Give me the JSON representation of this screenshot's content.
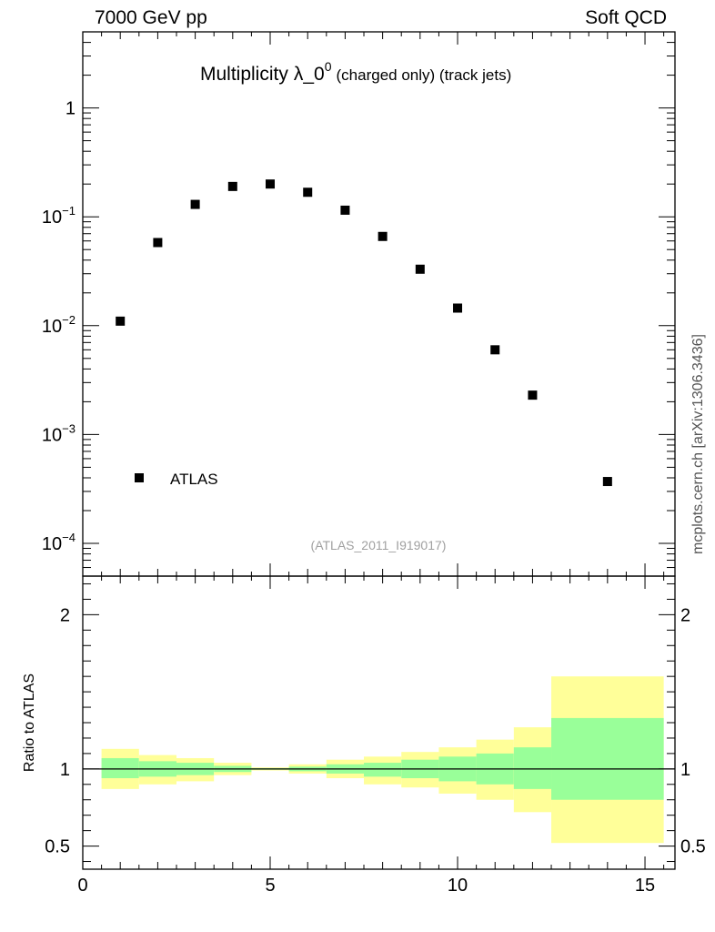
{
  "header": {
    "left": "7000 GeV pp",
    "right": "Soft QCD",
    "side": "mcplots.cern.ch [arXiv:1306.3436]"
  },
  "main": {
    "title": "Multiplicity",
    "title_symbol": "λ",
    "title_sub": "_0",
    "title_sup": "0",
    "title_suffix": "(charged only) (track jets)",
    "watermark": "(ATLAS_2011_I919017)",
    "legend_label": "ATLAS",
    "ratio_ylabel": "Ratio to ATLAS"
  },
  "colors": {
    "yellow_band": "#ffff99",
    "green_band": "#99ff99",
    "marker": "#000000"
  },
  "chart_data": [
    {
      "type": "scatter",
      "title": "Multiplicity λ_0^0 (charged only) (track jets)",
      "yscale": "log",
      "xlim": [
        0,
        15.8
      ],
      "ylim": [
        5e-05,
        5
      ],
      "y_ticks": [
        {
          "value": 0.0001,
          "base": "10",
          "exp": "−4"
        },
        {
          "value": 0.001,
          "base": "10",
          "exp": "−3"
        },
        {
          "value": 0.01,
          "base": "10",
          "exp": "−2"
        },
        {
          "value": 0.1,
          "base": "10",
          "exp": "−1"
        },
        {
          "value": 1,
          "base": "1",
          "exp": ""
        }
      ],
      "legend": "ATLAS",
      "legend_position": "lower-left",
      "x": [
        1,
        2,
        3,
        4,
        5,
        6,
        7,
        8,
        9,
        10,
        11,
        12,
        14
      ],
      "y": [
        0.011,
        0.058,
        0.13,
        0.19,
        0.2,
        0.168,
        0.115,
        0.066,
        0.033,
        0.0145,
        0.006,
        0.0023,
        0.00037
      ]
    },
    {
      "type": "area",
      "ylabel": "Ratio to ATLAS",
      "xlim": [
        0,
        15.8
      ],
      "ylim": [
        0.35,
        2.25
      ],
      "x_ticks": [
        0,
        5,
        10,
        15
      ],
      "y_ticks": [
        0.5,
        1,
        2
      ],
      "reference_line": 1,
      "bins": [
        {
          "lo": 0.5,
          "hi": 1.5,
          "yel": [
            0.87,
            1.13
          ],
          "grn": [
            0.94,
            1.07
          ]
        },
        {
          "lo": 1.5,
          "hi": 2.5,
          "yel": [
            0.9,
            1.09
          ],
          "grn": [
            0.95,
            1.05
          ]
        },
        {
          "lo": 2.5,
          "hi": 3.5,
          "yel": [
            0.92,
            1.07
          ],
          "grn": [
            0.96,
            1.04
          ]
        },
        {
          "lo": 3.5,
          "hi": 4.5,
          "yel": [
            0.96,
            1.04
          ],
          "grn": [
            0.98,
            1.02
          ]
        },
        {
          "lo": 4.5,
          "hi": 5.5,
          "yel": [
            0.99,
            1.01
          ],
          "grn": [
            0.995,
            1.005
          ]
        },
        {
          "lo": 5.5,
          "hi": 6.5,
          "yel": [
            0.97,
            1.03
          ],
          "grn": [
            0.985,
            1.015
          ]
        },
        {
          "lo": 6.5,
          "hi": 7.5,
          "yel": [
            0.94,
            1.06
          ],
          "grn": [
            0.97,
            1.03
          ]
        },
        {
          "lo": 7.5,
          "hi": 8.5,
          "yel": [
            0.9,
            1.08
          ],
          "grn": [
            0.95,
            1.04
          ]
        },
        {
          "lo": 8.5,
          "hi": 9.5,
          "yel": [
            0.88,
            1.11
          ],
          "grn": [
            0.94,
            1.06
          ]
        },
        {
          "lo": 9.5,
          "hi": 10.5,
          "yel": [
            0.84,
            1.14
          ],
          "grn": [
            0.92,
            1.08
          ]
        },
        {
          "lo": 10.5,
          "hi": 11.5,
          "yel": [
            0.8,
            1.19
          ],
          "grn": [
            0.9,
            1.1
          ]
        },
        {
          "lo": 11.5,
          "hi": 12.5,
          "yel": [
            0.72,
            1.27
          ],
          "grn": [
            0.87,
            1.14
          ]
        },
        {
          "lo": 12.5,
          "hi": 15.5,
          "yel": [
            0.52,
            1.6
          ],
          "grn": [
            0.8,
            1.33
          ]
        }
      ]
    }
  ]
}
